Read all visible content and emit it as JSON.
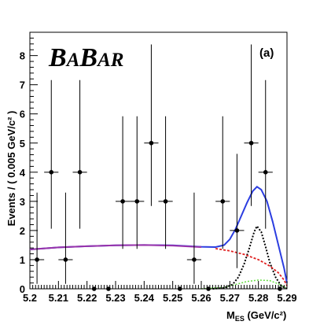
{
  "chart_data": {
    "type": "scatter",
    "title": "",
    "logo_text": [
      "B",
      "A",
      "B",
      "AR"
    ],
    "panel_label": "(a)",
    "ylabel": "Events / ( 0.005 GeV/c² )",
    "xlabel_main": "M",
    "xlabel_sub": "ES",
    "xlabel_unit": " (GeV/c²)",
    "xlim": [
      5.2,
      5.29
    ],
    "ylim": [
      0,
      8.8
    ],
    "xticks": [
      "5.2",
      "5.21",
      "5.22",
      "5.23",
      "5.24",
      "5.25",
      "5.26",
      "5.27",
      "5.28",
      "5.29"
    ],
    "yticks": [
      "0",
      "1",
      "2",
      "3",
      "4",
      "5",
      "6",
      "7",
      "8"
    ],
    "colors": {
      "total": "#2b3de0",
      "background": "#e02020",
      "signal": "#000000",
      "peaking": "#66dd44",
      "combined_bg": "#9933aa"
    },
    "data_points": [
      {
        "x": 5.2025,
        "y": 1,
        "yerr_lo": 0.83,
        "yerr_hi": 2.3
      },
      {
        "x": 5.2075,
        "y": 4,
        "yerr_lo": 1.94,
        "yerr_hi": 3.16
      },
      {
        "x": 5.2125,
        "y": 1,
        "yerr_lo": 0.83,
        "yerr_hi": 2.3
      },
      {
        "x": 5.2175,
        "y": 4,
        "yerr_lo": 1.94,
        "yerr_hi": 3.16
      },
      {
        "x": 5.2225,
        "y": 0,
        "yerr_lo": 0,
        "yerr_hi": 0
      },
      {
        "x": 5.2275,
        "y": 0,
        "yerr_lo": 0,
        "yerr_hi": 0
      },
      {
        "x": 5.2325,
        "y": 3,
        "yerr_lo": 1.63,
        "yerr_hi": 2.92
      },
      {
        "x": 5.2375,
        "y": 3,
        "yerr_lo": 1.63,
        "yerr_hi": 2.92
      },
      {
        "x": 5.2425,
        "y": 5,
        "yerr_lo": 2.16,
        "yerr_hi": 3.38
      },
      {
        "x": 5.2475,
        "y": 3,
        "yerr_lo": 1.63,
        "yerr_hi": 2.92
      },
      {
        "x": 5.2525,
        "y": 0,
        "yerr_lo": 0,
        "yerr_hi": 0
      },
      {
        "x": 5.2575,
        "y": 1,
        "yerr_lo": 0.83,
        "yerr_hi": 2.3
      },
      {
        "x": 5.2625,
        "y": 0,
        "yerr_lo": 0,
        "yerr_hi": 0
      },
      {
        "x": 5.2675,
        "y": 3,
        "yerr_lo": 1.63,
        "yerr_hi": 2.92
      },
      {
        "x": 5.2725,
        "y": 2,
        "yerr_lo": 1.29,
        "yerr_hi": 2.63
      },
      {
        "x": 5.2775,
        "y": 5,
        "yerr_lo": 2.16,
        "yerr_hi": 3.38
      },
      {
        "x": 5.2825,
        "y": 4,
        "yerr_lo": 1.94,
        "yerr_hi": 3.16
      },
      {
        "x": 5.2875,
        "y": 0,
        "yerr_lo": 0,
        "yerr_hi": 0
      }
    ],
    "curves": {
      "total_fit": [
        [
          5.2,
          1.35
        ],
        [
          5.21,
          1.42
        ],
        [
          5.22,
          1.46
        ],
        [
          5.23,
          1.49
        ],
        [
          5.24,
          1.5
        ],
        [
          5.25,
          1.49
        ],
        [
          5.26,
          1.44
        ],
        [
          5.265,
          1.43
        ],
        [
          5.268,
          1.5
        ],
        [
          5.27,
          1.7
        ],
        [
          5.272,
          2.05
        ],
        [
          5.274,
          2.5
        ],
        [
          5.276,
          2.95
        ],
        [
          5.278,
          3.35
        ],
        [
          5.2795,
          3.5
        ],
        [
          5.281,
          3.4
        ],
        [
          5.283,
          3.0
        ],
        [
          5.285,
          2.3
        ],
        [
          5.287,
          1.5
        ],
        [
          5.289,
          0.7
        ],
        [
          5.29,
          0.2
        ]
      ],
      "background": [
        [
          5.2,
          1.35
        ],
        [
          5.21,
          1.42
        ],
        [
          5.22,
          1.46
        ],
        [
          5.23,
          1.49
        ],
        [
          5.24,
          1.5
        ],
        [
          5.25,
          1.48
        ],
        [
          5.26,
          1.43
        ],
        [
          5.265,
          1.38
        ],
        [
          5.27,
          1.3
        ],
        [
          5.275,
          1.18
        ],
        [
          5.28,
          1.0
        ],
        [
          5.284,
          0.78
        ],
        [
          5.287,
          0.55
        ],
        [
          5.289,
          0.3
        ],
        [
          5.29,
          0.1
        ]
      ],
      "signal": [
        [
          5.264,
          0
        ],
        [
          5.268,
          0.03
        ],
        [
          5.271,
          0.15
        ],
        [
          5.273,
          0.4
        ],
        [
          5.275,
          0.85
        ],
        [
          5.277,
          1.45
        ],
        [
          5.2785,
          1.95
        ],
        [
          5.2795,
          2.15
        ],
        [
          5.281,
          1.95
        ],
        [
          5.2825,
          1.45
        ],
        [
          5.284,
          0.9
        ],
        [
          5.286,
          0.4
        ],
        [
          5.288,
          0.1
        ],
        [
          5.29,
          0
        ]
      ],
      "peaking": [
        [
          5.26,
          0
        ],
        [
          5.268,
          0.05
        ],
        [
          5.272,
          0.15
        ],
        [
          5.276,
          0.25
        ],
        [
          5.28,
          0.3
        ],
        [
          5.284,
          0.28
        ],
        [
          5.287,
          0.17
        ],
        [
          5.289,
          0.07
        ],
        [
          5.29,
          0
        ]
      ]
    }
  }
}
